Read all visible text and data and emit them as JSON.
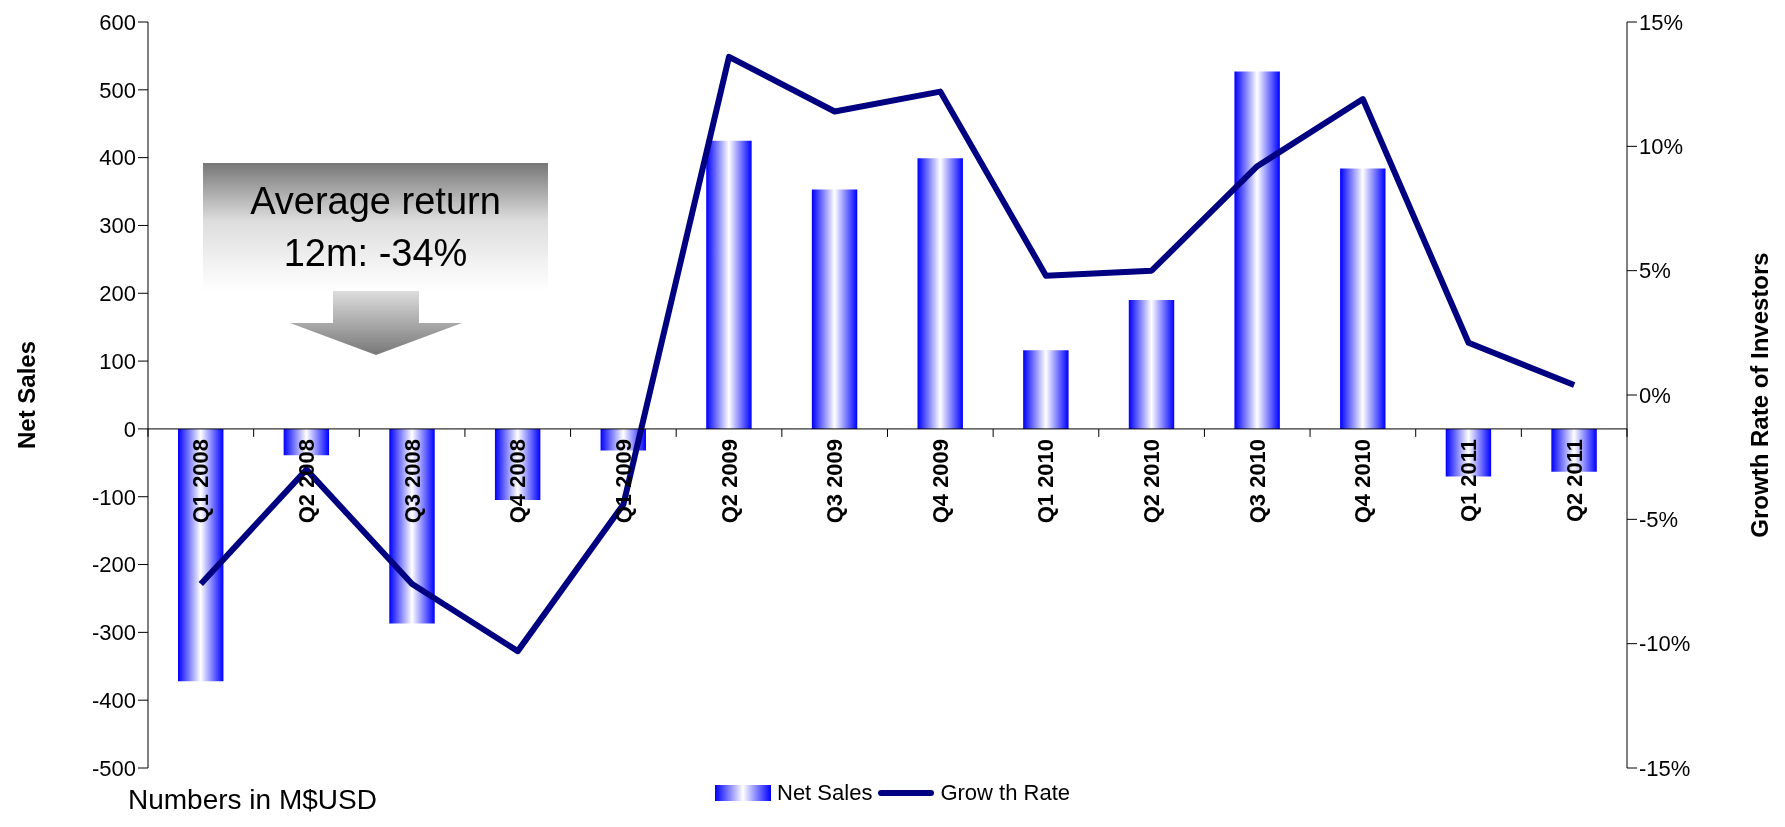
{
  "chart_data": {
    "type": "bar",
    "categories": [
      "Q1 2008",
      "Q2 2008",
      "Q3 2008",
      "Q4 2008",
      "Q1 2009",
      "Q2 2009",
      "Q3 2009",
      "Q4 2009",
      "Q1 2010",
      "Q2 2010",
      "Q3 2010",
      "Q4 2010",
      "Q1 2011",
      "Q2 2011"
    ],
    "series": [
      {
        "name": "Net Sales",
        "color": "#0000ff",
        "values": [
          -372,
          -39,
          -287,
          -105,
          -32,
          425,
          353,
          399,
          116,
          190,
          527,
          384,
          -70,
          -63
        ]
      },
      {
        "name": "Grow th Rate",
        "type": "line",
        "axis": "y2",
        "color": "#000080",
        "values": [
          -7.6,
          -3.0,
          -7.6,
          -10.3,
          -4.4,
          13.6,
          11.4,
          12.2,
          4.8,
          5.0,
          9.2,
          11.9,
          2.1,
          0.4
        ]
      }
    ],
    "ylabel": "Net Sales",
    "y2label": "Growth Rate of Investors",
    "ylim": [
      -500,
      600
    ],
    "yticks": [
      -500,
      -400,
      -300,
      -200,
      -100,
      0,
      100,
      200,
      300,
      400,
      500,
      600
    ],
    "y2lim": [
      -15,
      15
    ],
    "y2ticks": [
      {
        "value": -15,
        "label": "-15%"
      },
      {
        "value": -10,
        "label": "-10%"
      },
      {
        "value": -5,
        "label": "-5%"
      },
      {
        "value": 0,
        "label": "0%"
      },
      {
        "value": 5,
        "label": "5%"
      },
      {
        "value": 10,
        "label": "10%"
      },
      {
        "value": 15,
        "label": "15%"
      }
    ],
    "annotations": [
      "Average return 12m: -34%",
      "Numbers in M$USD"
    ],
    "legend": "bottom",
    "marker": "none",
    "line_style": "solid",
    "grid": false
  }
}
